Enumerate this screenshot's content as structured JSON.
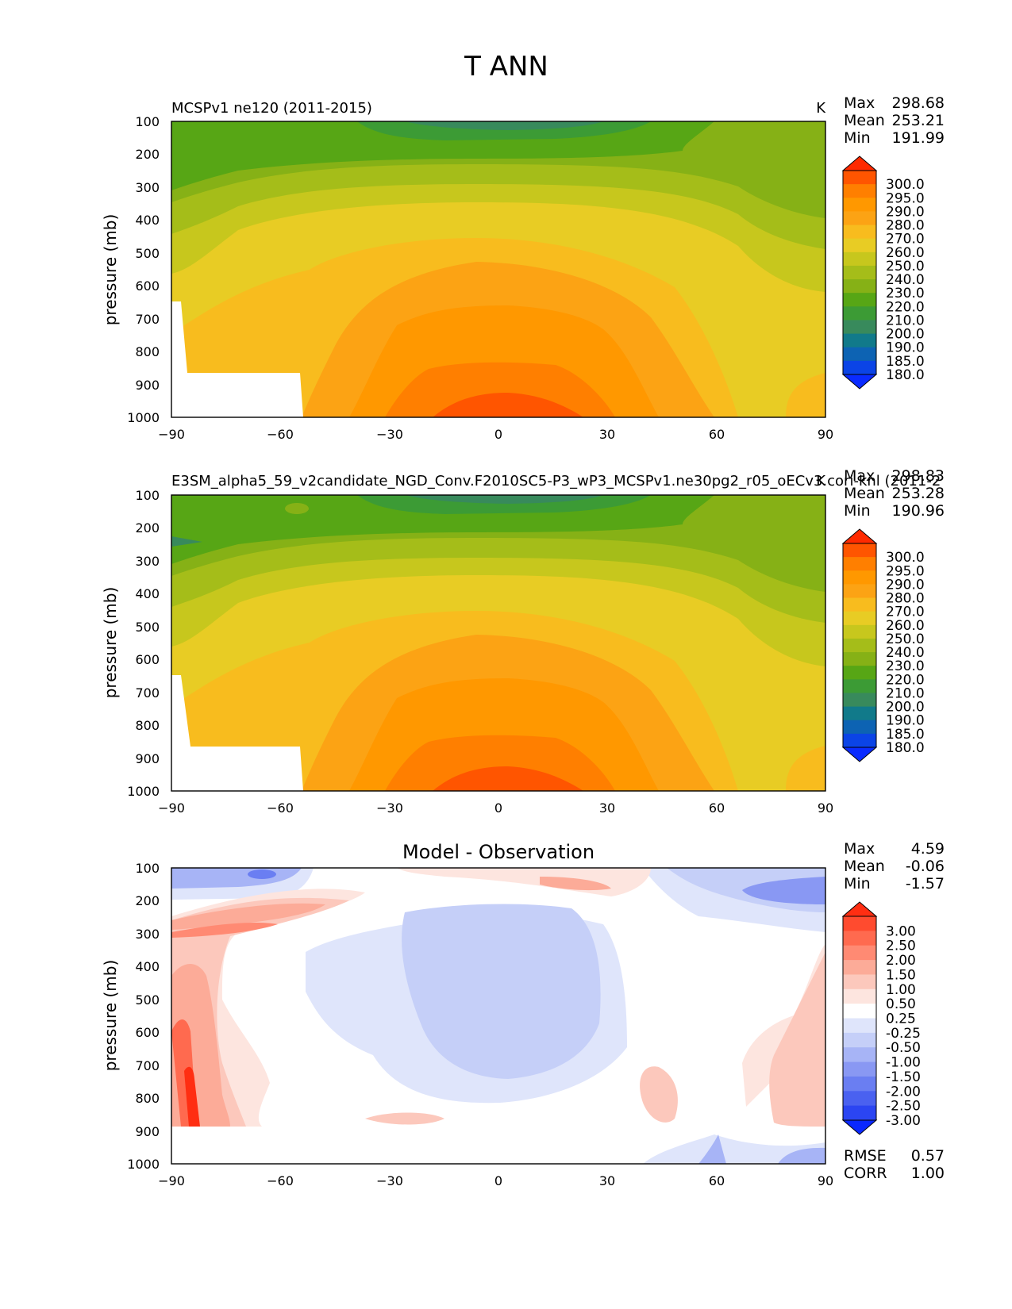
{
  "figure_title": "T ANN",
  "chart_data": [
    {
      "type": "contour",
      "title": "MCSPv1 ne120 (2011-2015)",
      "units": "K",
      "xlabel": "",
      "ylabel": "pressure (mb)",
      "xlim": [
        -90,
        90
      ],
      "ylim": [
        1000,
        100
      ],
      "xticks": [
        "−90",
        "−60",
        "−30",
        "0",
        "30",
        "60",
        "90"
      ],
      "yticks": [
        "100",
        "200",
        "300",
        "400",
        "500",
        "600",
        "700",
        "800",
        "900",
        "1000"
      ],
      "stats": [
        {
          "label": "Max",
          "value": "298.68"
        },
        {
          "label": "Mean",
          "value": "253.21"
        },
        {
          "label": "Min",
          "value": "191.99"
        }
      ],
      "colorbar": {
        "labels": [
          "300.0",
          "295.0",
          "290.0",
          "280.0",
          "270.0",
          "260.0",
          "250.0",
          "240.0",
          "230.0",
          "220.0",
          "210.0",
          "200.0",
          "190.0",
          "185.0",
          "180.0"
        ],
        "colors": [
          "#ff2a00",
          "#ff5500",
          "#ff7f00",
          "#ff9800",
          "#fca314",
          "#f8bc1e",
          "#e8cc24",
          "#c7c71d",
          "#a5bd19",
          "#86b116",
          "#57a615",
          "#3c9b35",
          "#388a5c",
          "#117a8a",
          "#0d63b3",
          "#0b44e6",
          "#0a2bff"
        ]
      }
    },
    {
      "type": "contour",
      "title": "E3SM_alpha5_59_v2candidate_NGD_Conv.F2010SC5-P3_wP3_MCSPv1.ne30pg2_r05_oECv3.cori-knl (2011-2",
      "units": "K",
      "xlabel": "",
      "ylabel": "pressure (mb)",
      "xlim": [
        -90,
        90
      ],
      "ylim": [
        1000,
        100
      ],
      "xticks": [
        "−90",
        "−60",
        "−30",
        "0",
        "30",
        "60",
        "90"
      ],
      "yticks": [
        "100",
        "200",
        "300",
        "400",
        "500",
        "600",
        "700",
        "800",
        "900",
        "1000"
      ],
      "stats": [
        {
          "label": "Max",
          "value": "298.83"
        },
        {
          "label": "Mean",
          "value": "253.28"
        },
        {
          "label": "Min",
          "value": "190.96"
        }
      ],
      "colorbar": {
        "labels": [
          "300.0",
          "295.0",
          "290.0",
          "280.0",
          "270.0",
          "260.0",
          "250.0",
          "240.0",
          "230.0",
          "220.0",
          "210.0",
          "200.0",
          "190.0",
          "185.0",
          "180.0"
        ],
        "colors": [
          "#ff2a00",
          "#ff5500",
          "#ff7f00",
          "#ff9800",
          "#fca314",
          "#f8bc1e",
          "#e8cc24",
          "#c7c71d",
          "#a5bd19",
          "#86b116",
          "#57a615",
          "#3c9b35",
          "#388a5c",
          "#117a8a",
          "#0d63b3",
          "#0b44e6",
          "#0a2bff"
        ]
      }
    },
    {
      "type": "contour",
      "title": "Model - Observation",
      "units": "",
      "xlabel": "",
      "ylabel": "pressure (mb)",
      "xlim": [
        -90,
        90
      ],
      "ylim": [
        1000,
        100
      ],
      "xticks": [
        "−90",
        "−60",
        "−30",
        "0",
        "30",
        "60",
        "90"
      ],
      "yticks": [
        "100",
        "200",
        "300",
        "400",
        "500",
        "600",
        "700",
        "800",
        "900",
        "1000"
      ],
      "stats": [
        {
          "label": "Max",
          "value": "4.59"
        },
        {
          "label": "Mean",
          "value": "-0.06"
        },
        {
          "label": "Min",
          "value": "-1.57"
        }
      ],
      "metrics": [
        {
          "label": "RMSE",
          "value": "0.57"
        },
        {
          "label": "CORR",
          "value": "1.00"
        }
      ],
      "colorbar": {
        "labels": [
          "3.00",
          "2.50",
          "2.00",
          "1.50",
          "1.00",
          "0.50",
          "0.25",
          "-0.25",
          "-0.50",
          "-1.00",
          "-1.50",
          "-2.00",
          "-2.50",
          "-3.00"
        ],
        "colors": [
          "#ff2e12",
          "#ff4b2f",
          "#ff6a4f",
          "#ff8a73",
          "#fcab98",
          "#fcc8bc",
          "#fde5df",
          "#ffffff",
          "#dfe5fb",
          "#c5cff8",
          "#a7b4f6",
          "#8998f3",
          "#6a7ef2",
          "#4a61f0",
          "#2b45f2",
          "#0a28ff"
        ]
      }
    }
  ]
}
